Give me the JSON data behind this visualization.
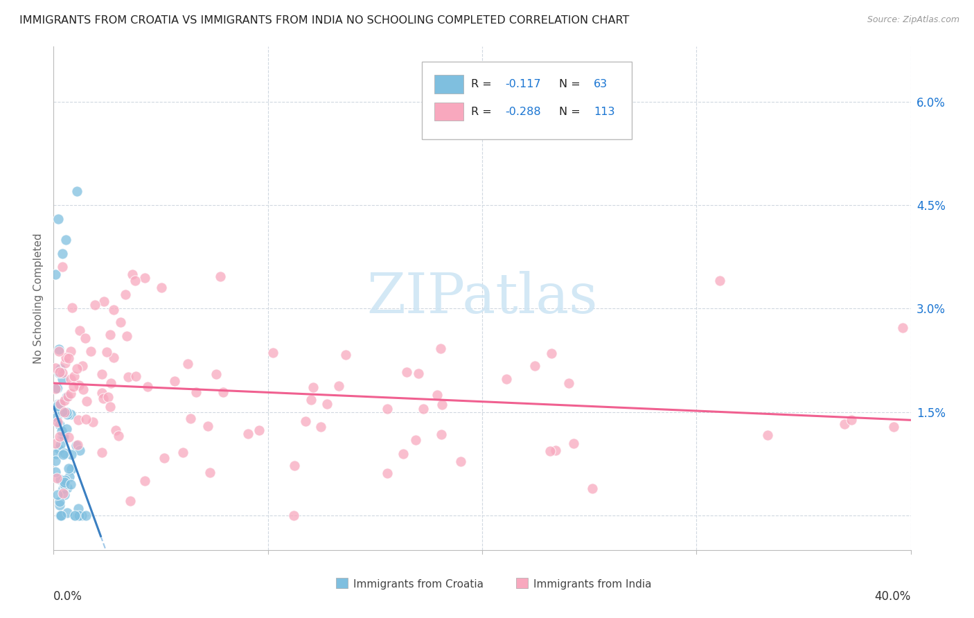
{
  "title": "IMMIGRANTS FROM CROATIA VS IMMIGRANTS FROM INDIA NO SCHOOLING COMPLETED CORRELATION CHART",
  "source": "Source: ZipAtlas.com",
  "ylabel": "No Schooling Completed",
  "xmin": 0.0,
  "xmax": 0.4,
  "ymin": -0.005,
  "ymax": 0.068,
  "color_croatia": "#7fbfdf",
  "color_india": "#f8a8be",
  "trendline_color_croatia": "#3a7fc1",
  "trendline_color_croatia_dashed": "#a0c8e8",
  "trendline_color_india": "#f06090",
  "background_color": "#ffffff",
  "grid_color": "#d0d8e0",
  "watermark_color": "#cce4f4",
  "legend_R_color": "#1a3a6e",
  "legend_val_color": "#1a75d2",
  "yticks": [
    0.0,
    0.015,
    0.03,
    0.045,
    0.06
  ],
  "ytick_labels": [
    "",
    "1.5%",
    "3.0%",
    "4.5%",
    "6.0%"
  ]
}
